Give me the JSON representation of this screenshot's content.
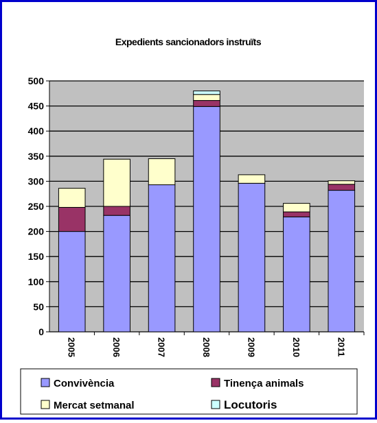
{
  "chart_data": {
    "type": "stacked_bar",
    "title": "Expedients sancionadors instruïts",
    "categories": [
      "2005",
      "2006",
      "2007",
      "2008",
      "2009",
      "2010",
      "2011"
    ],
    "series": [
      {
        "name": "Convivència",
        "color": "#9999ff",
        "values": [
          200,
          232,
          293,
          449,
          296,
          229,
          282
        ]
      },
      {
        "name": "Tinença animals",
        "color": "#993366",
        "values": [
          48,
          18,
          0,
          12,
          0,
          10,
          12
        ]
      },
      {
        "name": "Mercat setmanal",
        "color": "#ffffcc",
        "values": [
          38,
          94,
          52,
          12,
          17,
          17,
          7
        ]
      },
      {
        "name": "Locutoris",
        "color": "#ccffff",
        "values": [
          0,
          0,
          0,
          7,
          0,
          0,
          0
        ]
      }
    ],
    "ylim": [
      0,
      500
    ],
    "yticks": [
      0,
      50,
      100,
      150,
      200,
      250,
      300,
      350,
      400,
      450,
      500
    ],
    "grid": true
  }
}
